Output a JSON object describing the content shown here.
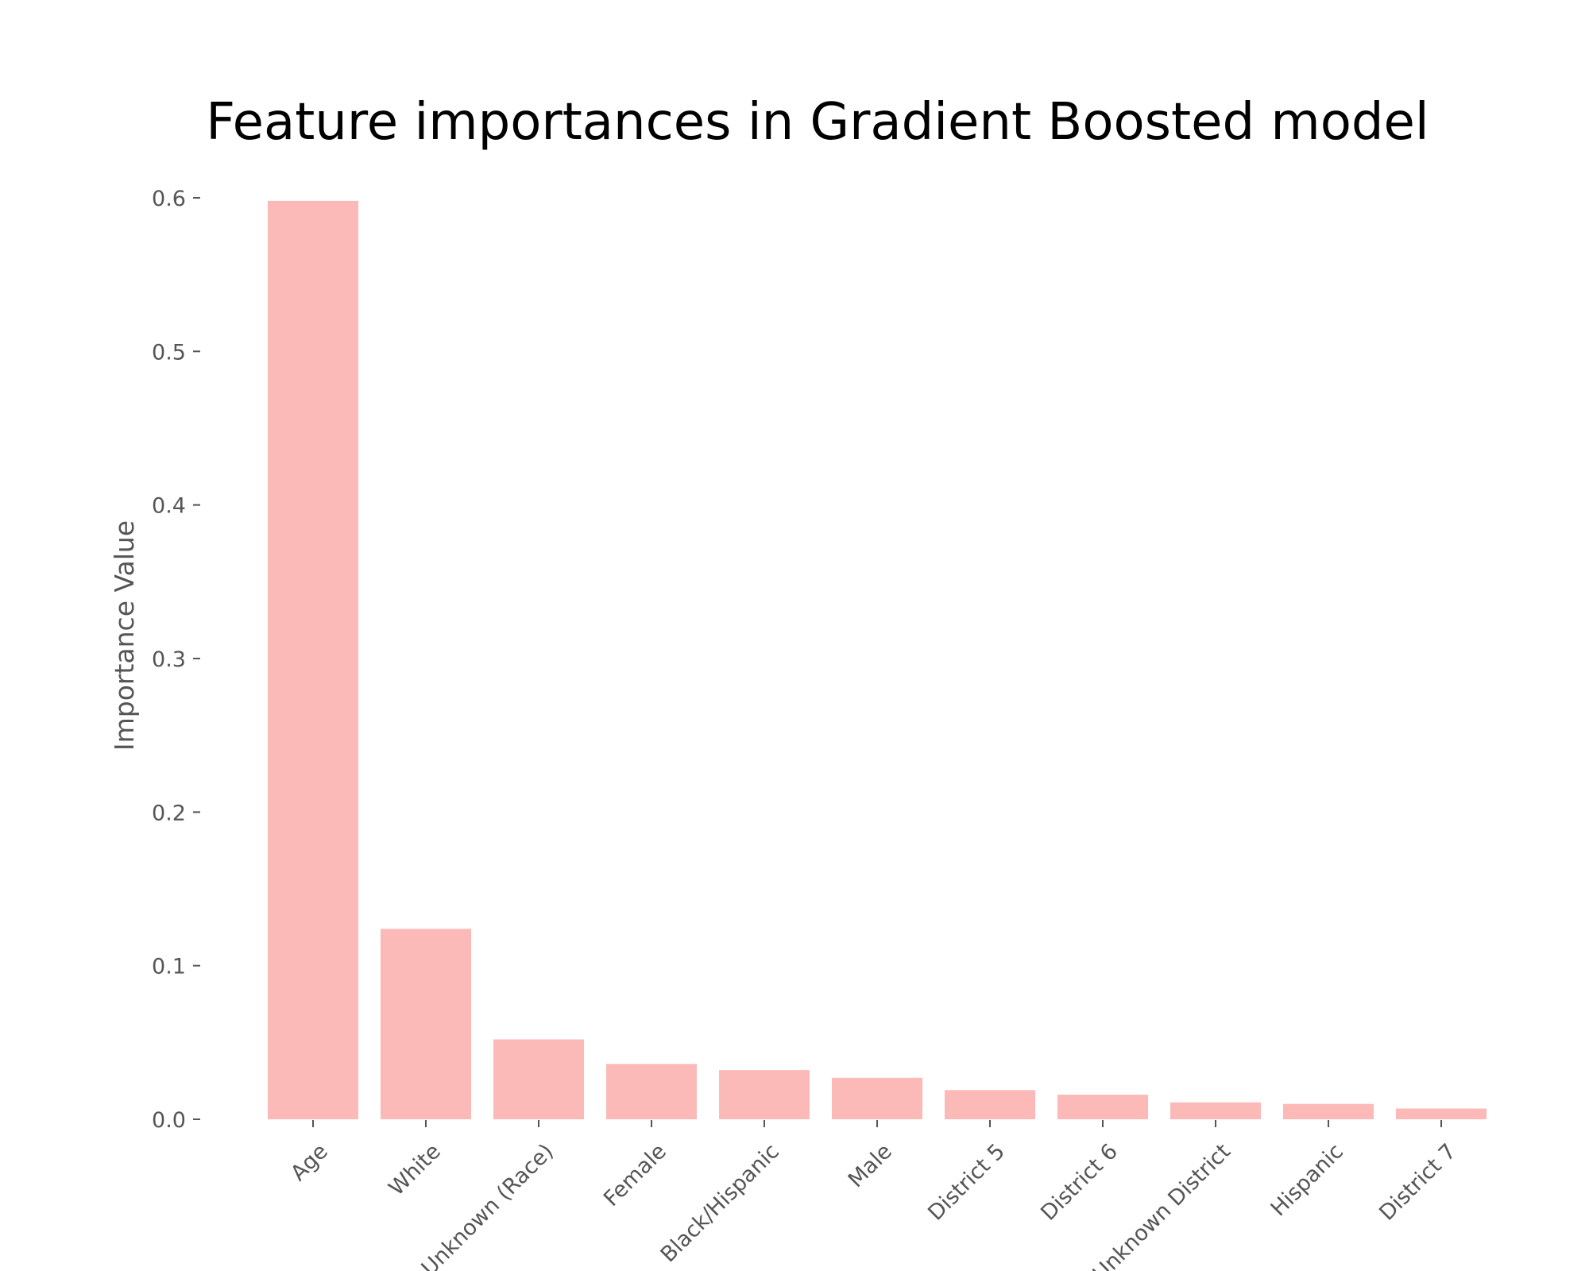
{
  "chart_data": {
    "type": "bar",
    "title": "Feature importances in Gradient Boosted model",
    "xlabel": "",
    "ylabel": "Importance Value",
    "categories": [
      "Age",
      "White",
      "Unknown (Race)",
      "Female",
      "Black/Hispanic",
      "Male",
      "District 5",
      "District 6",
      "Unknown District",
      "Hispanic",
      "District 7"
    ],
    "values": [
      0.598,
      0.124,
      0.052,
      0.036,
      0.032,
      0.027,
      0.019,
      0.016,
      0.011,
      0.01,
      0.007
    ],
    "yticks": [
      0.0,
      0.1,
      0.2,
      0.3,
      0.4,
      0.5,
      0.6
    ],
    "ytick_labels": [
      "0.0",
      "0.1",
      "0.2",
      "0.3",
      "0.4",
      "0.5",
      "0.6"
    ],
    "ylim": [
      0,
      0.6
    ],
    "grid": false,
    "bar_color": "#fbb9b7"
  }
}
